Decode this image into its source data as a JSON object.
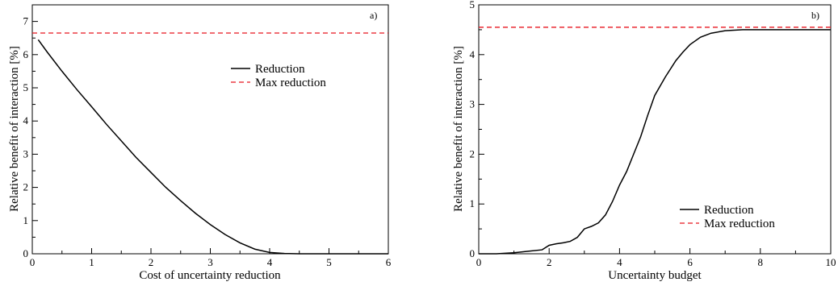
{
  "chart_data": [
    {
      "type": "line",
      "panel_label": "a)",
      "xlabel": "Cost of uncertainty reduction",
      "ylabel": "Relative benefit of interaction [%]",
      "xlim": [
        0,
        6
      ],
      "ylim": [
        0,
        7.5
      ],
      "xticks": [
        0,
        1,
        2,
        3,
        4,
        5,
        6
      ],
      "yticks": [
        0,
        1,
        2,
        3,
        4,
        5,
        6,
        7
      ],
      "legend_position": "upper-right",
      "series": [
        {
          "name": "Reduction",
          "color": "#000000",
          "style": "solid",
          "x": [
            0.1,
            0.25,
            0.5,
            0.75,
            1.0,
            1.25,
            1.5,
            1.75,
            2.0,
            2.25,
            2.5,
            2.75,
            3.0,
            3.25,
            3.5,
            3.75,
            4.0,
            4.25,
            4.5,
            5.0,
            5.5,
            6.0
          ],
          "y": [
            6.45,
            6.08,
            5.5,
            4.95,
            4.43,
            3.9,
            3.4,
            2.9,
            2.45,
            2.0,
            1.6,
            1.22,
            0.88,
            0.58,
            0.33,
            0.14,
            0.04,
            0.01,
            0.0,
            0.0,
            0.0,
            0.0
          ]
        },
        {
          "name": "Max reduction",
          "color": "#e8141e",
          "style": "dashed",
          "x": [
            0,
            6
          ],
          "y": [
            6.65,
            6.65
          ]
        }
      ]
    },
    {
      "type": "line",
      "panel_label": "b)",
      "xlabel": "Uncertainty budget",
      "ylabel": "Relative benefit of interaction [%]",
      "xlim": [
        0,
        10
      ],
      "ylim": [
        0,
        5
      ],
      "xticks": [
        0,
        2,
        4,
        6,
        8,
        10
      ],
      "yticks": [
        0,
        1,
        2,
        3,
        4,
        5
      ],
      "legend_position": "lower-right",
      "series": [
        {
          "name": "Reduction",
          "color": "#000000",
          "style": "solid",
          "x": [
            0,
            0.5,
            1.0,
            1.4,
            1.8,
            2.0,
            2.2,
            2.4,
            2.6,
            2.8,
            3.0,
            3.2,
            3.4,
            3.6,
            3.8,
            4.0,
            4.2,
            4.4,
            4.6,
            4.8,
            5.0,
            5.3,
            5.6,
            5.8,
            6.0,
            6.3,
            6.6,
            7.0,
            7.5,
            8.0,
            9.0,
            10.0
          ],
          "y": [
            0.0,
            0.0,
            0.02,
            0.05,
            0.08,
            0.17,
            0.2,
            0.22,
            0.25,
            0.33,
            0.5,
            0.55,
            0.62,
            0.78,
            1.05,
            1.38,
            1.65,
            2.0,
            2.35,
            2.78,
            3.18,
            3.55,
            3.88,
            4.05,
            4.2,
            4.35,
            4.43,
            4.48,
            4.5,
            4.5,
            4.5,
            4.5
          ]
        },
        {
          "name": "Max reduction",
          "color": "#e8141e",
          "style": "dashed",
          "x": [
            0,
            10
          ],
          "y": [
            4.55,
            4.55
          ]
        }
      ]
    }
  ]
}
